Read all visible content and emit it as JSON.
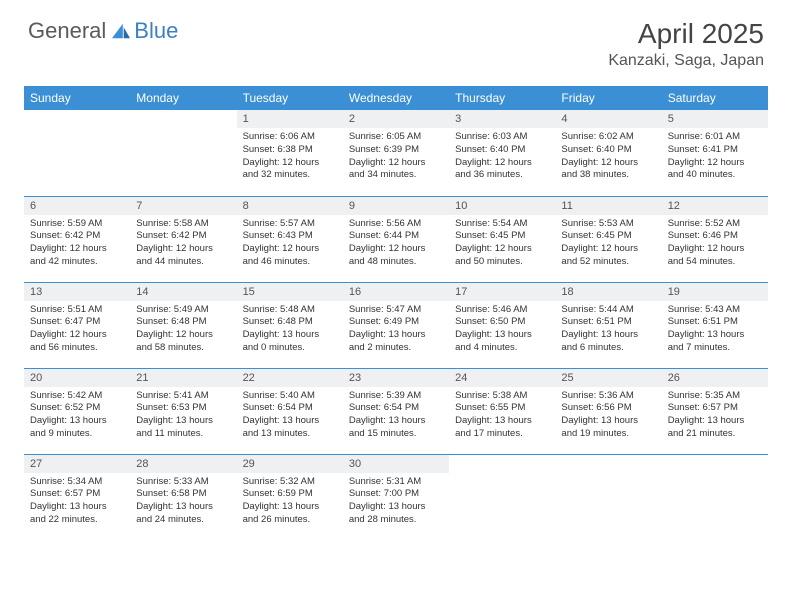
{
  "logo": {
    "text1": "General",
    "text2": "Blue",
    "brand_color": "#3b8fd4"
  },
  "title": "April 2025",
  "location": "Kanzaki, Saga, Japan",
  "colors": {
    "header_bg": "#3b8fd4",
    "header_text": "#ffffff",
    "daynum_bg": "#eef0f2",
    "border": "#3b8fd4",
    "body_text": "#333333",
    "page_bg": "#ffffff"
  },
  "weekdays": [
    "Sunday",
    "Monday",
    "Tuesday",
    "Wednesday",
    "Thursday",
    "Friday",
    "Saturday"
  ],
  "layout": {
    "columns": 7,
    "rows": 5,
    "start_weekday_index": 2,
    "days_in_month": 30
  },
  "days": [
    {
      "n": 1,
      "sunrise": "6:06 AM",
      "sunset": "6:38 PM",
      "daylight": "12 hours and 32 minutes."
    },
    {
      "n": 2,
      "sunrise": "6:05 AM",
      "sunset": "6:39 PM",
      "daylight": "12 hours and 34 minutes."
    },
    {
      "n": 3,
      "sunrise": "6:03 AM",
      "sunset": "6:40 PM",
      "daylight": "12 hours and 36 minutes."
    },
    {
      "n": 4,
      "sunrise": "6:02 AM",
      "sunset": "6:40 PM",
      "daylight": "12 hours and 38 minutes."
    },
    {
      "n": 5,
      "sunrise": "6:01 AM",
      "sunset": "6:41 PM",
      "daylight": "12 hours and 40 minutes."
    },
    {
      "n": 6,
      "sunrise": "5:59 AM",
      "sunset": "6:42 PM",
      "daylight": "12 hours and 42 minutes."
    },
    {
      "n": 7,
      "sunrise": "5:58 AM",
      "sunset": "6:42 PM",
      "daylight": "12 hours and 44 minutes."
    },
    {
      "n": 8,
      "sunrise": "5:57 AM",
      "sunset": "6:43 PM",
      "daylight": "12 hours and 46 minutes."
    },
    {
      "n": 9,
      "sunrise": "5:56 AM",
      "sunset": "6:44 PM",
      "daylight": "12 hours and 48 minutes."
    },
    {
      "n": 10,
      "sunrise": "5:54 AM",
      "sunset": "6:45 PM",
      "daylight": "12 hours and 50 minutes."
    },
    {
      "n": 11,
      "sunrise": "5:53 AM",
      "sunset": "6:45 PM",
      "daylight": "12 hours and 52 minutes."
    },
    {
      "n": 12,
      "sunrise": "5:52 AM",
      "sunset": "6:46 PM",
      "daylight": "12 hours and 54 minutes."
    },
    {
      "n": 13,
      "sunrise": "5:51 AM",
      "sunset": "6:47 PM",
      "daylight": "12 hours and 56 minutes."
    },
    {
      "n": 14,
      "sunrise": "5:49 AM",
      "sunset": "6:48 PM",
      "daylight": "12 hours and 58 minutes."
    },
    {
      "n": 15,
      "sunrise": "5:48 AM",
      "sunset": "6:48 PM",
      "daylight": "13 hours and 0 minutes."
    },
    {
      "n": 16,
      "sunrise": "5:47 AM",
      "sunset": "6:49 PM",
      "daylight": "13 hours and 2 minutes."
    },
    {
      "n": 17,
      "sunrise": "5:46 AM",
      "sunset": "6:50 PM",
      "daylight": "13 hours and 4 minutes."
    },
    {
      "n": 18,
      "sunrise": "5:44 AM",
      "sunset": "6:51 PM",
      "daylight": "13 hours and 6 minutes."
    },
    {
      "n": 19,
      "sunrise": "5:43 AM",
      "sunset": "6:51 PM",
      "daylight": "13 hours and 7 minutes."
    },
    {
      "n": 20,
      "sunrise": "5:42 AM",
      "sunset": "6:52 PM",
      "daylight": "13 hours and 9 minutes."
    },
    {
      "n": 21,
      "sunrise": "5:41 AM",
      "sunset": "6:53 PM",
      "daylight": "13 hours and 11 minutes."
    },
    {
      "n": 22,
      "sunrise": "5:40 AM",
      "sunset": "6:54 PM",
      "daylight": "13 hours and 13 minutes."
    },
    {
      "n": 23,
      "sunrise": "5:39 AM",
      "sunset": "6:54 PM",
      "daylight": "13 hours and 15 minutes."
    },
    {
      "n": 24,
      "sunrise": "5:38 AM",
      "sunset": "6:55 PM",
      "daylight": "13 hours and 17 minutes."
    },
    {
      "n": 25,
      "sunrise": "5:36 AM",
      "sunset": "6:56 PM",
      "daylight": "13 hours and 19 minutes."
    },
    {
      "n": 26,
      "sunrise": "5:35 AM",
      "sunset": "6:57 PM",
      "daylight": "13 hours and 21 minutes."
    },
    {
      "n": 27,
      "sunrise": "5:34 AM",
      "sunset": "6:57 PM",
      "daylight": "13 hours and 22 minutes."
    },
    {
      "n": 28,
      "sunrise": "5:33 AM",
      "sunset": "6:58 PM",
      "daylight": "13 hours and 24 minutes."
    },
    {
      "n": 29,
      "sunrise": "5:32 AM",
      "sunset": "6:59 PM",
      "daylight": "13 hours and 26 minutes."
    },
    {
      "n": 30,
      "sunrise": "5:31 AM",
      "sunset": "7:00 PM",
      "daylight": "13 hours and 28 minutes."
    }
  ],
  "labels": {
    "sunrise": "Sunrise:",
    "sunset": "Sunset:",
    "daylight": "Daylight:"
  }
}
